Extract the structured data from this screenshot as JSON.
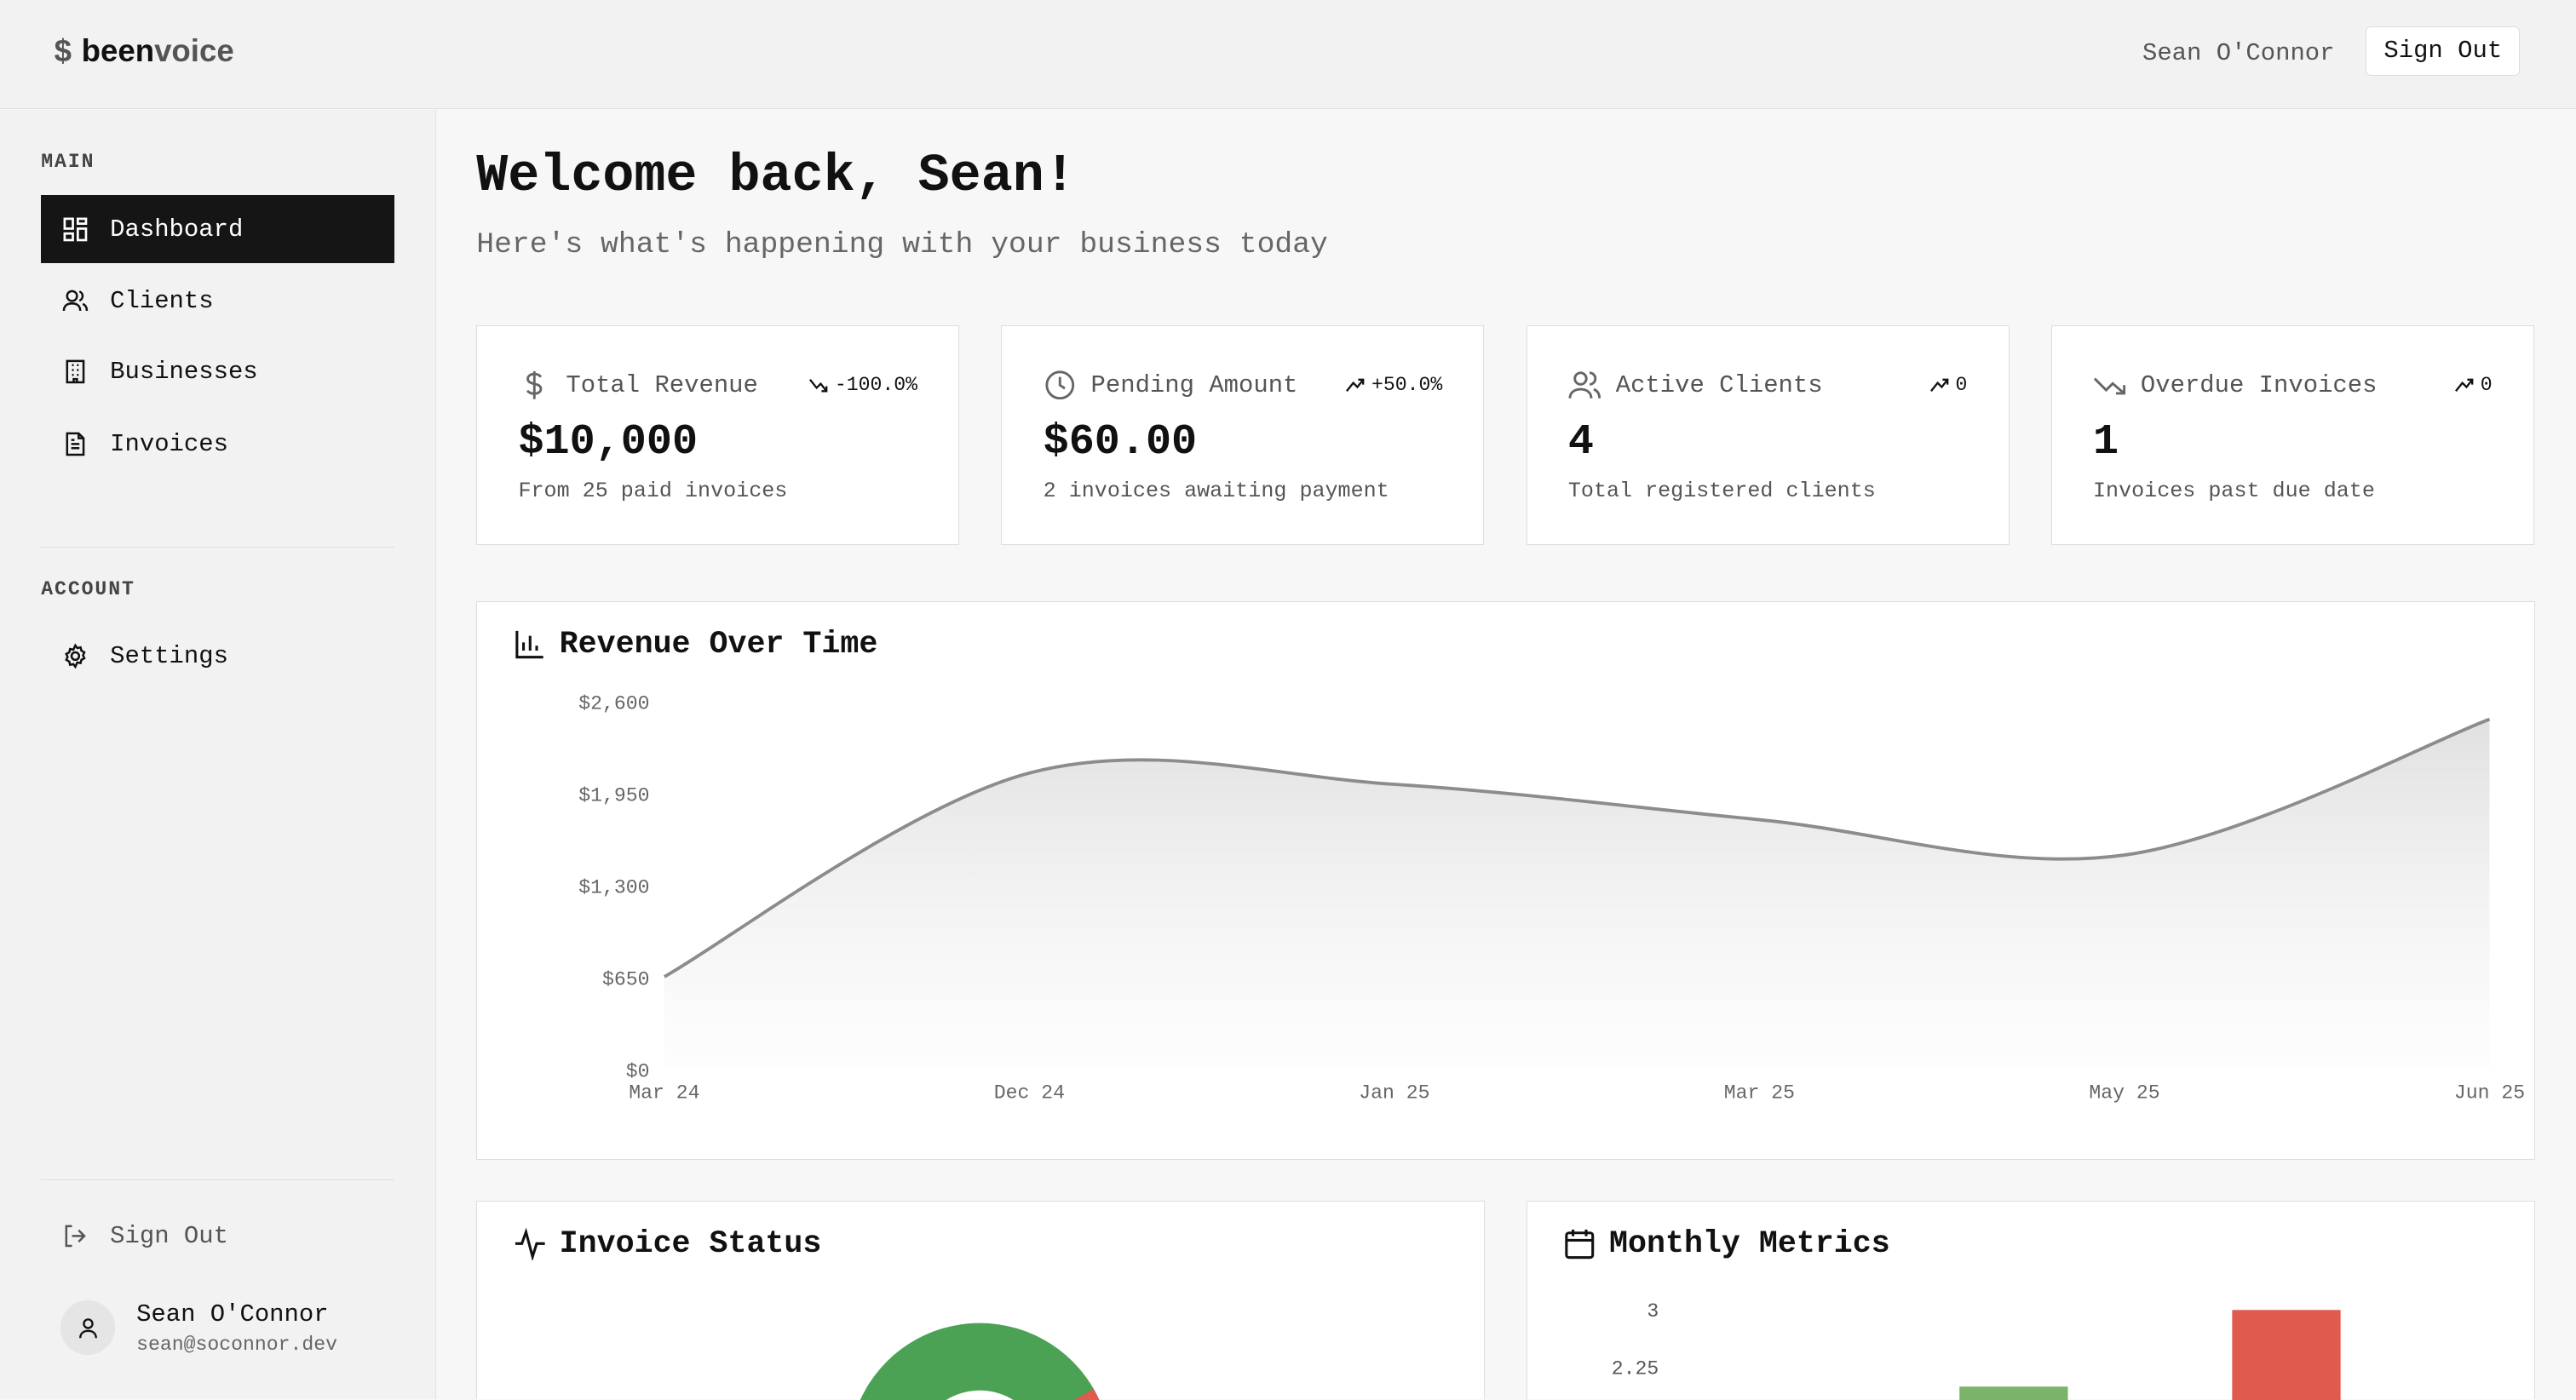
{
  "app": {
    "logo_symbol": "$",
    "logo_bold": "been",
    "logo_rest": "voice"
  },
  "topbar": {
    "user_name": "Sean O'Connor",
    "sign_out": "Sign Out"
  },
  "sidebar": {
    "main_label": "MAIN",
    "items": [
      {
        "label": "Dashboard",
        "icon": "dashboard-icon",
        "active": true
      },
      {
        "label": "Clients",
        "icon": "users-icon"
      },
      {
        "label": "Businesses",
        "icon": "building-icon"
      },
      {
        "label": "Invoices",
        "icon": "file-text-icon"
      }
    ],
    "account_label": "ACCOUNT",
    "settings": "Settings",
    "sign_out": "Sign Out",
    "user": {
      "name": "Sean O'Connor",
      "email": "sean@soconnor.dev"
    }
  },
  "header": {
    "title": "Welcome back, Sean!",
    "subtitle": "Here's what's happening with your business today"
  },
  "cards": [
    {
      "label": "Total Revenue",
      "change": "-100.0%",
      "trend": "down",
      "value": "$10,000",
      "desc": "From 25 paid invoices",
      "icon": "dollar-icon"
    },
    {
      "label": "Pending Amount",
      "change": "+50.0%",
      "trend": "up",
      "value": "$60.00",
      "desc": "2 invoices awaiting payment",
      "icon": "clock-icon"
    },
    {
      "label": "Active Clients",
      "change": "0",
      "trend": "up",
      "value": "4",
      "desc": "Total registered clients",
      "icon": "users-icon"
    },
    {
      "label": "Overdue Invoices",
      "change": "0",
      "trend": "up",
      "value": "1",
      "desc": "Invoices past due date",
      "icon": "trending-down-icon"
    }
  ],
  "panels": {
    "revenue": "Revenue Over Time",
    "status": "Invoice Status",
    "monthly": "Monthly Metrics"
  },
  "chart_data": [
    {
      "type": "area",
      "title": "Revenue Over Time",
      "categories": [
        "Mar 24",
        "Dec 24",
        "Jan 25",
        "Mar 25",
        "May 25",
        "Jun 25"
      ],
      "values": [
        660,
        2100,
        2020,
        1770,
        1520,
        2480
      ],
      "yticks": [
        "$0",
        "$650",
        "$1,300",
        "$1,950",
        "$2,600"
      ],
      "ylim": [
        0,
        2600
      ],
      "color": "#8c8c8c"
    },
    {
      "type": "pie",
      "title": "Invoice Status",
      "donut": true,
      "colors": [
        "#4ba254",
        "#e05a4e"
      ]
    },
    {
      "type": "bar",
      "title": "Monthly Metrics",
      "yticks": [
        "2.25",
        "3"
      ],
      "values": [
        2,
        3
      ],
      "colors": [
        "#7bb36b",
        "#e05a4e"
      ]
    }
  ]
}
